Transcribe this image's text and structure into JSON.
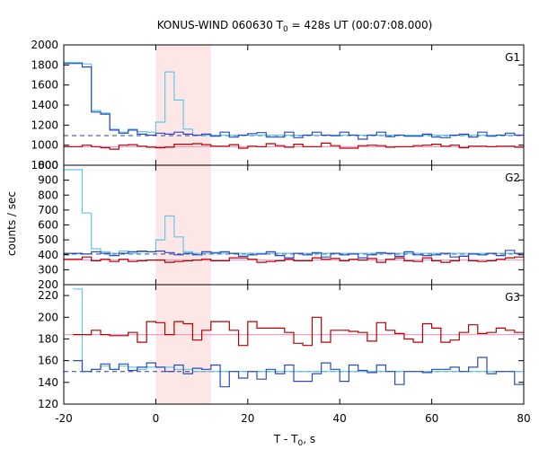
{
  "chart_data": {
    "type": "line",
    "title_parts": {
      "pre": "KONUS-WIND 060630 T",
      "sub": "0",
      "post": " = 428s UT (00:07:08.000)"
    },
    "xlabel_parts": {
      "pre": "T - T",
      "sub": "0",
      "post": ", s"
    },
    "ylabel": "counts / sec",
    "xlim": [
      -20,
      80
    ],
    "x_ticks": [
      "-20",
      "0",
      "20",
      "40",
      "60",
      "80"
    ],
    "highlight_interval": [
      0,
      12
    ],
    "colors": {
      "highlight": "#fde6e6",
      "red_series": "#b30000",
      "dark_blue_series": "#2b4bb8",
      "light_blue_series": "#62c6e8",
      "pink_fit": "#ff88bb",
      "blue_background": "#1f3fae"
    },
    "panels": [
      {
        "name": "G1",
        "ylim": [
          800,
          2000
        ],
        "y_ticks": [
          "800",
          "1000",
          "1200",
          "1400",
          "1600",
          "1800",
          "2000"
        ],
        "red_bg_level": 985,
        "blue_bg_level": 1095,
        "bins_start": -20,
        "bin_width": 2,
        "red": [
          985,
          985,
          1000,
          985,
          975,
          960,
          1000,
          1005,
          990,
          980,
          975,
          980,
          1010,
          1010,
          1015,
          1005,
          990,
          990,
          1005,
          970,
          990,
          985,
          1015,
          995,
          980,
          1010,
          985,
          985,
          1020,
          995,
          970,
          970,
          995,
          1000,
          995,
          980,
          985,
          985,
          995,
          1000,
          1010,
          990,
          1000,
          975,
          990,
          990,
          985,
          990,
          990,
          980
        ],
        "blue": [
          1815,
          1815,
          1780,
          1330,
          1310,
          1150,
          1120,
          1150,
          1110,
          1100,
          1120,
          1110,
          1130,
          1110,
          1100,
          1110,
          1090,
          1130,
          1080,
          1100,
          1115,
          1125,
          1080,
          1080,
          1130,
          1075,
          1100,
          1130,
          1100,
          1095,
          1130,
          1100,
          1060,
          1100,
          1130,
          1085,
          1100,
          1090,
          1090,
          1110,
          1080,
          1075,
          1100,
          1110,
          1080,
          1130,
          1090,
          1100,
          1120,
          1100
        ],
        "flare_start": -20,
        "flare": [
          1825,
          1825,
          1810,
          1345,
          1320,
          1160,
          1130,
          1160,
          1135,
          1130,
          1230,
          1730,
          1450,
          1160
        ],
        "flare_end_level": 1100
      },
      {
        "name": "G2",
        "ylim": [
          200,
          1000
        ],
        "y_ticks": [
          "200",
          "300",
          "400",
          "500",
          "600",
          "700",
          "800",
          "900",
          "1000"
        ],
        "red_bg_level": 365,
        "blue_bg_level": 405,
        "bins_start": -20,
        "bin_width": 2,
        "red": [
          370,
          370,
          385,
          360,
          370,
          355,
          370,
          355,
          360,
          365,
          365,
          350,
          355,
          360,
          365,
          370,
          360,
          360,
          380,
          380,
          370,
          350,
          355,
          360,
          370,
          360,
          360,
          380,
          370,
          375,
          360,
          370,
          365,
          375,
          350,
          370,
          380,
          360,
          355,
          380,
          360,
          350,
          360,
          390,
          360,
          355,
          360,
          370,
          380,
          385
        ],
        "blue": [
          410,
          410,
          405,
          420,
          410,
          395,
          410,
          420,
          425,
          420,
          425,
          415,
          400,
          410,
          400,
          420,
          415,
          420,
          410,
          390,
          400,
          405,
          420,
          395,
          380,
          410,
          400,
          415,
          385,
          410,
          400,
          405,
          380,
          400,
          415,
          410,
          390,
          420,
          400,
          395,
          400,
          410,
          385,
          390,
          405,
          400,
          410,
          395,
          430,
          410
        ],
        "flare_start": -20,
        "flare": [
          970,
          970,
          680,
          440,
          420,
          410,
          425,
          410,
          420,
          420,
          500,
          660,
          520,
          420
        ],
        "flare_end_level": 410
      },
      {
        "name": "G3",
        "ylim": [
          120,
          230
        ],
        "y_ticks": [
          "120",
          "140",
          "160",
          "180",
          "200",
          "220"
        ],
        "red_bg_level": 184,
        "blue_bg_level": 150,
        "bins_start": -18,
        "bin_width": 2,
        "red": [
          184,
          184,
          188,
          184,
          183,
          183,
          186,
          177,
          196,
          195,
          184,
          196,
          194,
          179,
          188,
          196,
          196,
          188,
          174,
          196,
          190,
          190,
          190,
          186,
          176,
          174,
          200,
          177,
          188,
          188,
          187,
          186,
          178,
          195,
          188,
          185,
          180,
          177,
          194,
          190,
          177,
          179,
          186,
          193,
          185,
          186,
          190,
          188,
          186
        ],
        "blue": [
          160,
          150,
          152,
          157,
          152,
          157,
          151,
          154,
          158,
          154,
          150,
          156,
          148,
          153,
          152,
          156,
          136,
          150,
          144,
          150,
          143,
          152,
          148,
          156,
          141,
          141,
          148,
          158,
          152,
          141,
          156,
          151,
          149,
          156,
          150,
          138,
          150,
          150,
          149,
          152,
          152,
          154,
          150,
          154,
          163,
          148,
          150,
          150,
          138
        ],
        "flare_start": -18,
        "flare": [
          226,
          150,
          152,
          155,
          152,
          155,
          154,
          152,
          154,
          154,
          154,
          152,
          152
        ],
        "flare_end_level": 150
      }
    ]
  }
}
